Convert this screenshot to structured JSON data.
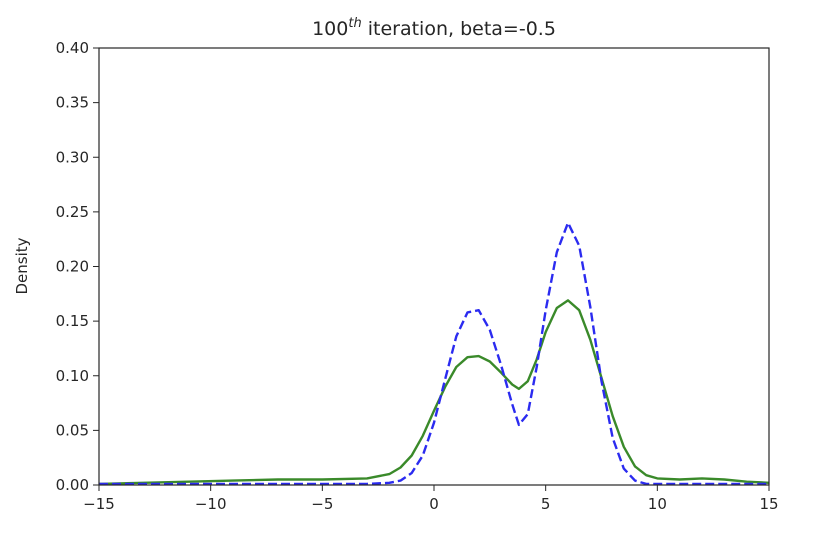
{
  "chart_data": {
    "type": "line",
    "title_base": "100",
    "title_sup": "th",
    "title_rest": " iteration, beta=-0.5",
    "xlabel": "",
    "ylabel": "Density",
    "xlim": [
      -15,
      15
    ],
    "ylim": [
      0,
      0.4
    ],
    "xticks": [
      -15,
      -10,
      -5,
      0,
      5,
      10,
      15
    ],
    "xtick_labels": [
      "−15",
      "−10",
      "−5",
      "0",
      "5",
      "10",
      "15"
    ],
    "yticks": [
      0,
      0.05,
      0.1,
      0.15,
      0.2,
      0.25,
      0.3,
      0.35,
      0.4
    ],
    "ytick_labels": [
      "0.00",
      "0.05",
      "0.10",
      "0.15",
      "0.20",
      "0.25",
      "0.30",
      "0.35",
      "0.40"
    ],
    "grid": false,
    "series": [
      {
        "style": "solid",
        "color": "#3a8a2a",
        "x": [
          -15,
          -13,
          -11,
          -9,
          -7,
          -5,
          -3,
          -2,
          -1.5,
          -1,
          -0.5,
          0,
          0.5,
          1,
          1.5,
          2,
          2.5,
          3,
          3.5,
          3.8,
          4.2,
          4.6,
          5,
          5.5,
          6,
          6.5,
          7,
          7.5,
          8,
          8.5,
          9,
          9.5,
          10,
          11,
          12,
          13,
          14,
          15
        ],
        "y": [
          0.001,
          0.002,
          0.003,
          0.004,
          0.005,
          0.005,
          0.006,
          0.01,
          0.016,
          0.027,
          0.045,
          0.068,
          0.09,
          0.108,
          0.117,
          0.118,
          0.113,
          0.103,
          0.092,
          0.088,
          0.095,
          0.115,
          0.14,
          0.162,
          0.169,
          0.16,
          0.133,
          0.098,
          0.063,
          0.035,
          0.017,
          0.009,
          0.006,
          0.005,
          0.006,
          0.005,
          0.003,
          0.002
        ]
      },
      {
        "style": "dashed",
        "color": "#2b2bf0",
        "x": [
          -15,
          -13,
          -11,
          -9,
          -7,
          -5,
          -3,
          -2,
          -1.5,
          -1,
          -0.5,
          0,
          0.5,
          1,
          1.5,
          2,
          2.5,
          3,
          3.5,
          3.8,
          4.2,
          4.6,
          5,
          5.5,
          6,
          6.5,
          7,
          7.5,
          8,
          8.5,
          9,
          9.5,
          10,
          11,
          12,
          13,
          14,
          15
        ],
        "y": [
          0.001,
          0.001,
          0.001,
          0.001,
          0.001,
          0.001,
          0.001,
          0.002,
          0.004,
          0.011,
          0.027,
          0.057,
          0.097,
          0.136,
          0.158,
          0.16,
          0.142,
          0.11,
          0.074,
          0.055,
          0.065,
          0.108,
          0.16,
          0.213,
          0.24,
          0.219,
          0.163,
          0.095,
          0.043,
          0.015,
          0.004,
          0.001,
          0.001,
          0.001,
          0.001,
          0.001,
          0.001,
          0.001
        ]
      }
    ]
  }
}
